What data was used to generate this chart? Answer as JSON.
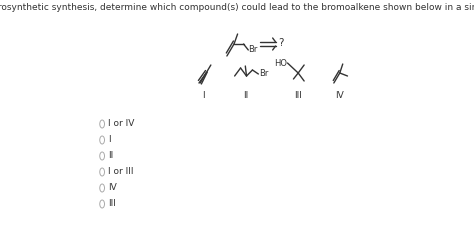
{
  "title_text": "Using retrosynthetic synthesis, determine which compound(s) could lead to the bromoalkene shown below in a single step.",
  "title_fontsize": 6.5,
  "background_color": "#ffffff",
  "text_color": "#333333",
  "options": [
    "I or IV",
    "I",
    "II",
    "I or III",
    "IV",
    "III"
  ],
  "roman_labels": [
    "I",
    "II",
    "III",
    "IV"
  ],
  "arrow_label": "?",
  "figsize": [
    4.74,
    2.36
  ],
  "dpi": 100,
  "lw": 1.0,
  "fs_chem": 6.0,
  "fs_roman": 6.5,
  "fs_opt": 6.5
}
